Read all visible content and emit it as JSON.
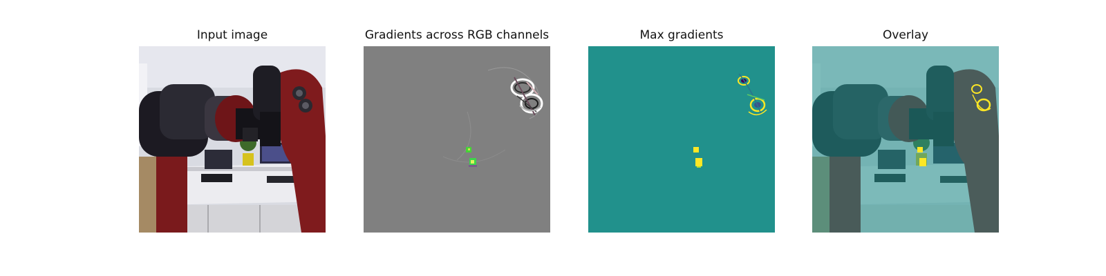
{
  "figure": {
    "panels": [
      {
        "title": "Input image"
      },
      {
        "title": "Gradients across RGB channels"
      },
      {
        "title": "Max gradients"
      },
      {
        "title": "Overlay"
      }
    ],
    "colors": {
      "gradient_background": "#808080",
      "max_gradient_background": "#21918c",
      "max_gradient_highlight": "#fde725",
      "robot_red": "#7a1a1c",
      "robot_black": "#1c1a22",
      "wall": "#d9dbe2",
      "desk": "#e8e8ec",
      "overlay_tint": "#21918c"
    }
  }
}
